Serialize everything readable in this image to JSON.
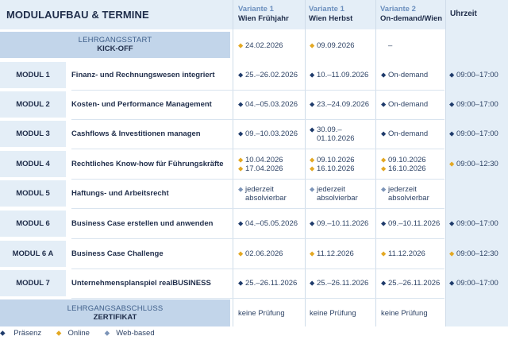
{
  "title": "MODULAUFBAU & TERMINE",
  "columns": [
    {
      "variant": "Variante 1",
      "name": "Wien Frühjahr"
    },
    {
      "variant": "Variante 1",
      "name": "Wien Herbst"
    },
    {
      "variant": "Variante 2",
      "name": "On-demand/Wien"
    }
  ],
  "uhrzeit_label": "Uhrzeit",
  "kickoff": {
    "line1": "LEHRGANGSSTART",
    "line2": "KICK-OFF",
    "dates": [
      [
        {
          "icon": "online",
          "text": "24.02.2026"
        }
      ],
      [
        {
          "icon": "online",
          "text": "09.09.2026"
        }
      ],
      [
        {
          "icon": "none",
          "text": "–"
        }
      ]
    ]
  },
  "modules": [
    {
      "code": "MODUL 1",
      "name": "Finanz- und Rechnungswesen integriert",
      "cells": [
        [
          {
            "icon": "praesenz",
            "text": "25.–26.02.2026"
          }
        ],
        [
          {
            "icon": "praesenz",
            "text": "10.–11.09.2026"
          }
        ],
        [
          {
            "icon": "praesenz",
            "text": "On-demand"
          }
        ]
      ],
      "time": [
        {
          "icon": "praesenz",
          "text": "09:00–17:00"
        }
      ]
    },
    {
      "code": "MODUL 2",
      "name": "Kosten- und Performance Management",
      "cells": [
        [
          {
            "icon": "praesenz",
            "text": "04.–05.03.2026"
          }
        ],
        [
          {
            "icon": "praesenz",
            "text": "23.–24.09.2026"
          }
        ],
        [
          {
            "icon": "praesenz",
            "text": "On-demand"
          }
        ]
      ],
      "time": [
        {
          "icon": "praesenz",
          "text": "09:00–17:00"
        }
      ]
    },
    {
      "code": "MODUL 3",
      "name": "Cashflows & Investitionen managen",
      "cells": [
        [
          {
            "icon": "praesenz",
            "text": "09.–10.03.2026"
          }
        ],
        [
          {
            "icon": "praesenz",
            "text": "30.09.–"
          },
          {
            "icon": "none",
            "text": "01.10.2026"
          }
        ],
        [
          {
            "icon": "praesenz",
            "text": "On-demand"
          }
        ]
      ],
      "time": [
        {
          "icon": "praesenz",
          "text": "09:00–17:00"
        }
      ]
    },
    {
      "code": "MODUL 4",
      "name": "Rechtliches Know-how für Führungskräfte",
      "cells": [
        [
          {
            "icon": "online",
            "text": "10.04.2026"
          },
          {
            "icon": "online",
            "text": "17.04.2026"
          }
        ],
        [
          {
            "icon": "online",
            "text": "09.10.2026"
          },
          {
            "icon": "online",
            "text": "16.10.2026"
          }
        ],
        [
          {
            "icon": "online",
            "text": "09.10.2026"
          },
          {
            "icon": "online",
            "text": "16.10.2026"
          }
        ]
      ],
      "time": [
        {
          "icon": "online",
          "text": "09:00–12:30"
        }
      ]
    },
    {
      "code": "MODUL 5",
      "name": "Haftungs- und Arbeitsrecht",
      "cells": [
        [
          {
            "icon": "web",
            "text": "jederzeit"
          },
          {
            "icon": "none",
            "text": "absolvierbar"
          }
        ],
        [
          {
            "icon": "web",
            "text": "jederzeit"
          },
          {
            "icon": "none",
            "text": "absolvierbar"
          }
        ],
        [
          {
            "icon": "web",
            "text": "jederzeit"
          },
          {
            "icon": "none",
            "text": "absolvierbar"
          }
        ]
      ],
      "time": []
    },
    {
      "code": "MODUL 6",
      "name": "Business Case erstellen und anwenden",
      "cells": [
        [
          {
            "icon": "praesenz",
            "text": "04.–05.05.2026"
          }
        ],
        [
          {
            "icon": "praesenz",
            "text": "09.–10.11.2026"
          }
        ],
        [
          {
            "icon": "praesenz",
            "text": "09.–10.11.2026"
          }
        ]
      ],
      "time": [
        {
          "icon": "praesenz",
          "text": "09:00–17:00"
        }
      ]
    },
    {
      "code": "MODUL 6 A",
      "name": "Business Case Challenge",
      "cells": [
        [
          {
            "icon": "online",
            "text": "02.06.2026"
          }
        ],
        [
          {
            "icon": "online",
            "text": "11.12.2026"
          }
        ],
        [
          {
            "icon": "online",
            "text": "11.12.2026"
          }
        ]
      ],
      "time": [
        {
          "icon": "online",
          "text": "09:00–12:30"
        }
      ]
    },
    {
      "code": "MODUL 7",
      "name": "Unternehmensplanspiel realBUSINESS",
      "cells": [
        [
          {
            "icon": "praesenz",
            "text": "25.–26.11.2026"
          }
        ],
        [
          {
            "icon": "praesenz",
            "text": "25.–26.11.2026"
          }
        ],
        [
          {
            "icon": "praesenz",
            "text": "25.–26.11.2026"
          }
        ]
      ],
      "time": [
        {
          "icon": "praesenz",
          "text": "09:00–17:00"
        }
      ]
    }
  ],
  "abschluss": {
    "line1": "LEHRGANGSABSCHLUSS",
    "line2": "ZERTIFIKAT",
    "cells": [
      "keine Prüfung",
      "keine Prüfung",
      "keine Prüfung"
    ]
  },
  "legend": [
    {
      "icon": "praesenz",
      "label": "Präsenz"
    },
    {
      "icon": "online",
      "label": "Online"
    },
    {
      "icon": "web",
      "label": "Web-based"
    }
  ],
  "icons": {
    "praesenz": "location-pin-navy",
    "online": "location-pin-gold",
    "web": "location-pin-grey"
  },
  "colors": {
    "navy": "#1f2d4a",
    "header_bg": "#e4eef7",
    "band_bg": "#c2d5ea",
    "accent_blue": "#6b8fbe",
    "online_gold": "#e3a823"
  }
}
